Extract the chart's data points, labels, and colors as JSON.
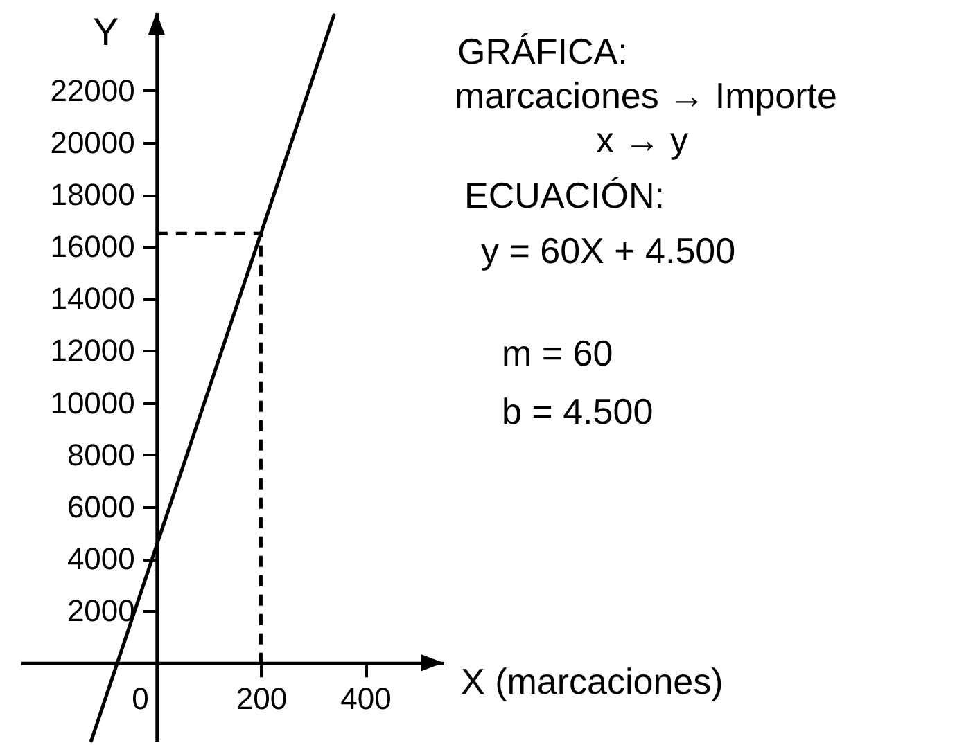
{
  "chart_data": {
    "type": "line",
    "xlabel": "X (marcaciones)",
    "ylabel": "Y",
    "xlim": [
      -260,
      550
    ],
    "ylim": [
      -3000,
      25000
    ],
    "xticks": [
      0,
      200,
      400
    ],
    "yticks": [
      2000,
      4000,
      6000,
      8000,
      10000,
      12000,
      14000,
      16000,
      18000,
      20000,
      22000
    ],
    "series": [
      {
        "color": "#000000",
        "x": [
          -125,
          0,
          200,
          340
        ],
        "values": [
          -3000,
          4500,
          16500,
          24900
        ]
      },
      {
        "color": "#000000",
        "x": [
          0,
          200,
          200
        ],
        "values": [
          16500,
          16500,
          0
        ],
        "line_style": "dashed"
      }
    ],
    "annotations": [
      "GRÁFICA:",
      "marcaciones → Importe",
      "x → y",
      "ECUACIÓN:",
      "y = 60X + 4.500",
      "m = 60",
      "b = 4.500"
    ]
  }
}
